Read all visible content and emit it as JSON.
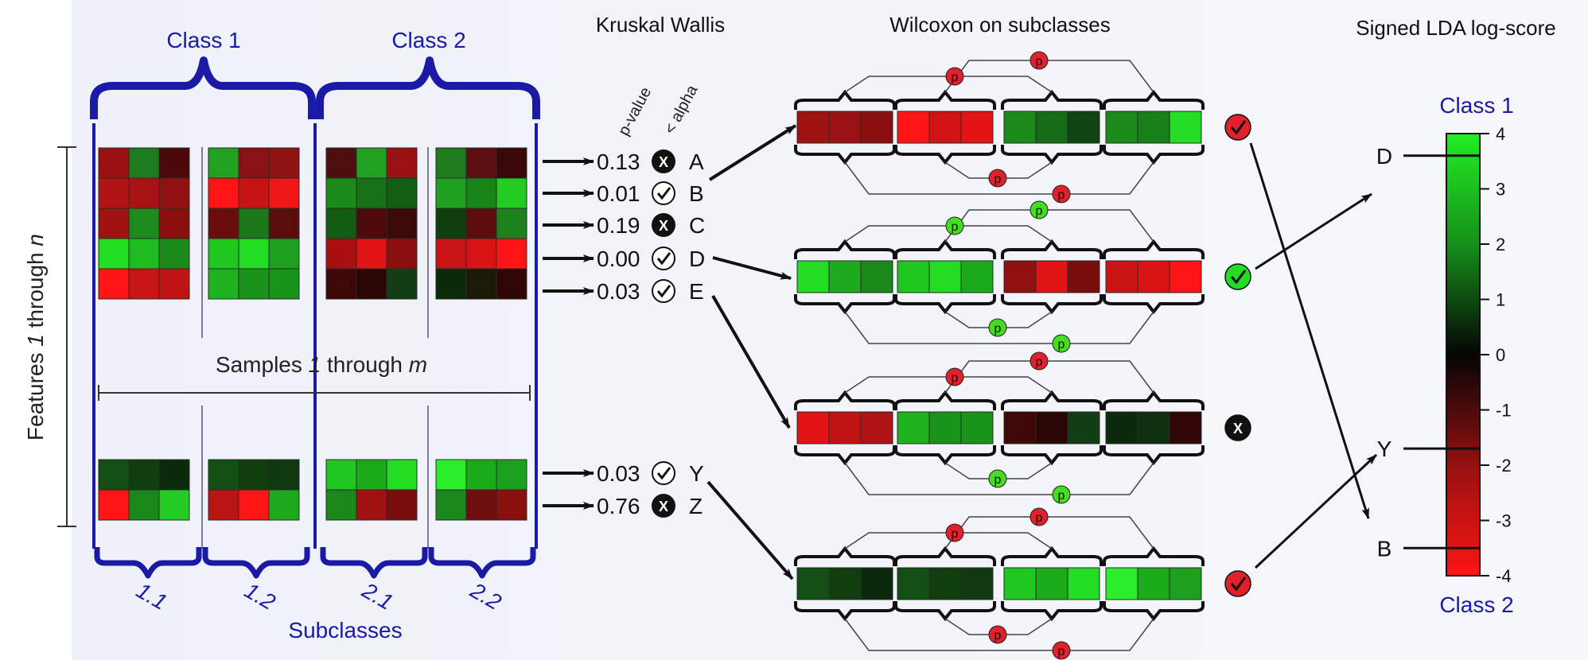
{
  "titles": {
    "kruskal": "Kruskal Wallis",
    "wilcoxon": "Wilcoxon on subclasses",
    "lda": "Signed LDA log-score"
  },
  "left_panel": {
    "class1": "Class 1",
    "class2": "Class 2",
    "samples_pre": "Samples ",
    "samples_i1": "1",
    "samples_mid": " through ",
    "samples_i2": "m",
    "features_pre": "Features ",
    "features_i1": "1",
    "features_mid": " through ",
    "features_i2": "n",
    "subclasses": "Subclasses",
    "subclass_labels": [
      "1.1",
      "1.2",
      "2.1",
      "2.2"
    ]
  },
  "kw_headers": {
    "pvalue": "p-value",
    "alpha": "< alpha"
  },
  "kw_rows": [
    {
      "value": "0.13",
      "pass": false,
      "feature": "A"
    },
    {
      "value": "0.01",
      "pass": true,
      "feature": "B"
    },
    {
      "value": "0.19",
      "pass": false,
      "feature": "C"
    },
    {
      "value": "0.00",
      "pass": true,
      "feature": "D"
    },
    {
      "value": "0.03",
      "pass": true,
      "feature": "E"
    },
    {
      "value": "0.03",
      "pass": true,
      "feature": "Y"
    },
    {
      "value": "0.76",
      "pass": false,
      "feature": "Z"
    }
  ],
  "p_symbol": "p",
  "x_symbol": "X",
  "lda": {
    "class1": "Class 1",
    "class2": "Class 2",
    "ticks": [
      "4",
      "3",
      "2",
      "1",
      "0",
      "-1",
      "-2",
      "-3",
      "-4"
    ],
    "features": [
      {
        "name": "D",
        "score": 3.6
      },
      {
        "name": "Y",
        "score": -1.7
      },
      {
        "name": "B",
        "score": -3.5
      }
    ]
  },
  "colors": {
    "brace_blue": "#1a1aa6",
    "red_badge": "#e0202a",
    "green_badge": "#22dd22",
    "black_badge": "#111111"
  },
  "heatmaps": {
    "left_top": [
      [
        "#9a1010",
        "#1d7a1d",
        "#4a0a0a",
        "#22a022",
        "#8a1212",
        "#8e1414",
        "#4f0e0e",
        "#22a022",
        "#9a1212",
        "#1d7a1d",
        "#5a1010",
        "#3a0808"
      ],
      [
        "#b01414",
        "#a81414",
        "#8f1111",
        "#ff1515",
        "#c41414",
        "#ee1616",
        "#1a8a1a",
        "#177117",
        "#135e13",
        "#20a020",
        "#188418",
        "#22cc22"
      ],
      [
        "#9e1212",
        "#1d8a1d",
        "#8a1010",
        "#6a0d0d",
        "#1a771a",
        "#5a0d0d",
        "#135c13",
        "#4e0a0a",
        "#3c0808",
        "#0f3f0f",
        "#5e0c0c",
        "#1d821d"
      ],
      [
        "#22dd22",
        "#20bb20",
        "#1b8a1b",
        "#1ec81e",
        "#22dd22",
        "#1f9f1f",
        "#a81010",
        "#e01414",
        "#8a1010",
        "#c81414",
        "#d61414",
        "#ff1515"
      ],
      [
        "#ff1515",
        "#c81414",
        "#c01414",
        "#1eb21e",
        "#1a931a",
        "#1a931a",
        "#3e0808",
        "#2a0606",
        "#133e13",
        "#0a2a0a",
        "#1a1a06",
        "#300606"
      ]
    ],
    "left_bottom": [
      [
        "#134f13",
        "#0f3f0f",
        "#0b2a0b",
        "#134f13",
        "#0f3f0f",
        "#103810",
        "#1ec81e",
        "#1aaa1a",
        "#22dd22",
        "#2aee2a",
        "#1aaa1a",
        "#1ba01b"
      ],
      [
        "#ff1515",
        "#1a881a",
        "#22cc22",
        "#b81414",
        "#ff1515",
        "#1ea81e",
        "#1a881a",
        "#a01212",
        "#7a0e0e",
        "#1a881a",
        "#6e0e0e",
        "#8a1010"
      ]
    ],
    "mid_rows": [
      [
        "#a01212",
        "#9a1212",
        "#8a1010",
        "#ff1515",
        "#d01414",
        "#e41414",
        "#1a8a1a",
        "#166c16",
        "#104410",
        "#1a8a1a",
        "#188018",
        "#22dd22"
      ],
      [
        "#22dd22",
        "#1eaa1e",
        "#1b8a1b",
        "#1ec81e",
        "#22dd22",
        "#1aaa1a",
        "#900f0f",
        "#e01414",
        "#7a0e0e",
        "#c81414",
        "#d81414",
        "#ff1515"
      ],
      [
        "#e01414",
        "#c01414",
        "#b01414",
        "#1eb21e",
        "#1a931a",
        "#1a931a",
        "#3e0808",
        "#2a0606",
        "#133e13",
        "#0a2a0a",
        "#0f300f",
        "#300606"
      ],
      [
        "#134f13",
        "#0f3f0f",
        "#0b2a0b",
        "#134f13",
        "#0f3f0f",
        "#103810",
        "#1ec81e",
        "#1aaa1a",
        "#22dd22",
        "#2aee2a",
        "#1aaa1a",
        "#1ba01b"
      ]
    ],
    "mid_badges": [
      "red",
      "green",
      "black",
      "red"
    ]
  }
}
